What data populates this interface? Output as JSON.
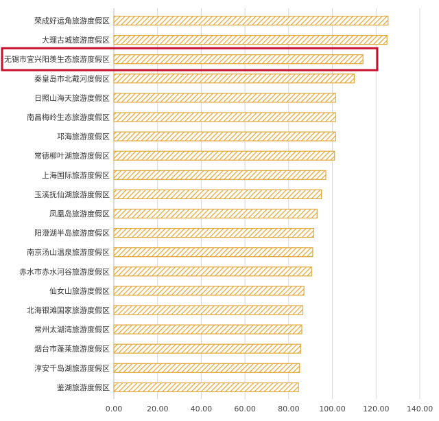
{
  "chart_data": {
    "type": "bar",
    "orientation": "horizontal",
    "categories": [
      "荣成好运角旅游度假区",
      "大理古城旅游度假区",
      "无锡市宜兴阳羡生态旅游度假区",
      "秦皇岛市北戴河度假区",
      "日照山海天旅游度假区",
      "南昌梅岭生态旅游度假区",
      "邛海旅游度假区",
      "常德柳叶湖旅游度假区",
      "上海国际旅游度假区",
      "玉溪抚仙湖旅游度假区",
      "凤凰岛旅游度假区",
      "阳澄湖半岛旅游度假区",
      "南京汤山温泉旅游度假区",
      "赤水市赤水河谷旅游度假区",
      "仙女山旅游度假区",
      "北海银滩国家旅游度假区",
      "常州太湖湾旅游度假区",
      "烟台市蓬莱旅游度假区",
      "淳安千岛湖旅游度假区",
      "鉴湖旅游度假区"
    ],
    "values": [
      125.5,
      125.0,
      114.0,
      110.0,
      101.5,
      101.5,
      101.5,
      101.0,
      97.0,
      95.0,
      93.0,
      91.5,
      91.0,
      90.5,
      87.0,
      86.5,
      86.0,
      85.5,
      85.0,
      84.5
    ],
    "highlighted_category": "无锡市宜兴阳羡生态旅游度假区",
    "xlim": [
      0,
      140
    ],
    "xticks": [
      "0.00",
      "20.00",
      "40.00",
      "60.00",
      "80.00",
      "100.00",
      "120.00",
      "140.00"
    ],
    "grid": true,
    "bar_color": "#e8a93a",
    "bar_pattern": "diagonal-hatch",
    "highlight_color": "#c8102e",
    "legend": "none",
    "title": "",
    "xlabel": "",
    "ylabel": ""
  }
}
